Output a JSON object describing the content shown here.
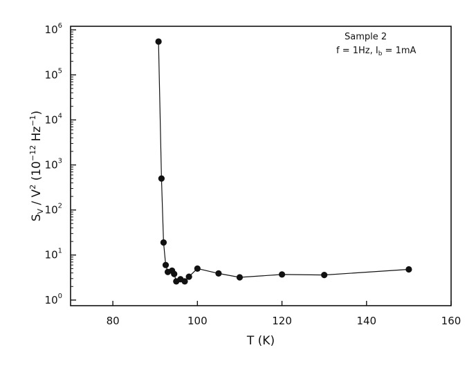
{
  "chart_data": {
    "type": "scatter",
    "title": "",
    "xlabel": "T (K)",
    "ylabel": "S_V / V^2 (10^-12 Hz^-1)",
    "y_scale": "log",
    "xlim": [
      70,
      160
    ],
    "ylim": [
      0.75,
      1200000
    ],
    "grid": false,
    "x_ticks": [
      80,
      100,
      120,
      140,
      160
    ],
    "x_tick_labels": [
      "80",
      "100",
      "120",
      "140",
      "160"
    ],
    "y_ticks": [
      1,
      10,
      100,
      1000,
      10000,
      100000,
      1000000
    ],
    "y_tick_labels": [
      {
        "base": "10",
        "exp": "0"
      },
      {
        "base": "10",
        "exp": "1"
      },
      {
        "base": "10",
        "exp": "2"
      },
      {
        "base": "10",
        "exp": "3"
      },
      {
        "base": "10",
        "exp": "4"
      },
      {
        "base": "10",
        "exp": "5"
      },
      {
        "base": "10",
        "exp": "6"
      }
    ],
    "annotation": {
      "line1": "Sample 2",
      "line2": "f = 1Hz, I_b = 1mA"
    },
    "series": [
      {
        "connected": true,
        "x": [
          90.8,
          91.5,
          92.0,
          92.5,
          93.0,
          94.0,
          94.5,
          95.0,
          96.0,
          97.0,
          98.0,
          100.0,
          105.0,
          110.0,
          120.0,
          130.0,
          150.0
        ],
        "y": [
          550000,
          500,
          19,
          6,
          4.2,
          4.5,
          3.8,
          2.6,
          2.9,
          2.6,
          3.3,
          5.0,
          3.9,
          3.2,
          3.7,
          3.6,
          4.8
        ]
      }
    ]
  }
}
